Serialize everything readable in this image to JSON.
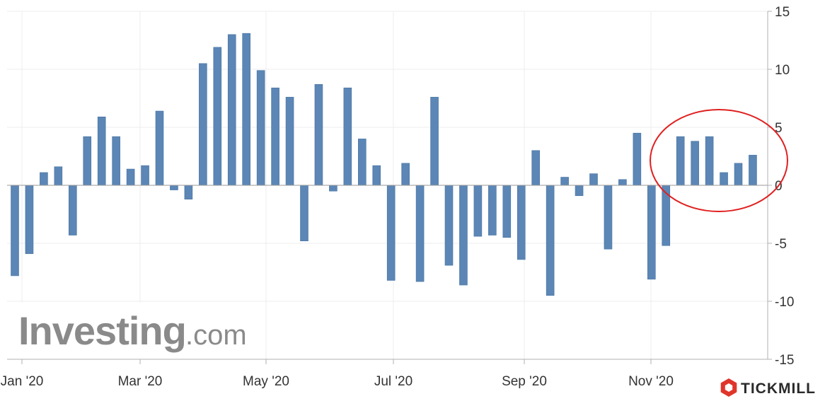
{
  "chart_data": {
    "type": "bar",
    "series": [
      {
        "values": [
          -7.8,
          -5.9,
          1.1,
          1.6,
          -4.3,
          4.2,
          5.9,
          4.2,
          1.4,
          1.7,
          6.4,
          -0.4,
          -1.2,
          10.5,
          11.9,
          13.0,
          13.1,
          9.9,
          8.4,
          7.6,
          -4.8,
          8.7,
          -0.5,
          8.4,
          4.0,
          1.7,
          -8.2,
          1.9,
          -8.3,
          7.6,
          -6.9,
          -8.6,
          -4.4,
          -4.3,
          -4.5,
          -6.4,
          3.0,
          -9.5,
          0.7,
          -0.9,
          1.0,
          -5.5,
          0.5,
          4.5,
          -8.1,
          -5.2,
          4.2,
          3.8,
          4.2,
          1.1,
          1.9,
          2.6
        ]
      }
    ],
    "x_tick_labels": [
      "Jan '20",
      "Mar '20",
      "May '20",
      "Jul '20",
      "Sep '20",
      "Nov '20"
    ],
    "y_tick_labels": [
      "15",
      "10",
      "5",
      "0",
      "-5",
      "-10",
      "-15"
    ],
    "y_ticks": [
      15,
      10,
      5,
      0,
      -5,
      -10,
      -15
    ],
    "ylim": [
      -15,
      15
    ],
    "y_axis_position": "right",
    "grid": true,
    "bar_color": "#5b86b5",
    "highlight_color": "#e02020"
  },
  "watermark": {
    "main": "Investing",
    "sub": ".com"
  },
  "brand": {
    "name": "TICKMILL",
    "color": "#e0352b"
  }
}
